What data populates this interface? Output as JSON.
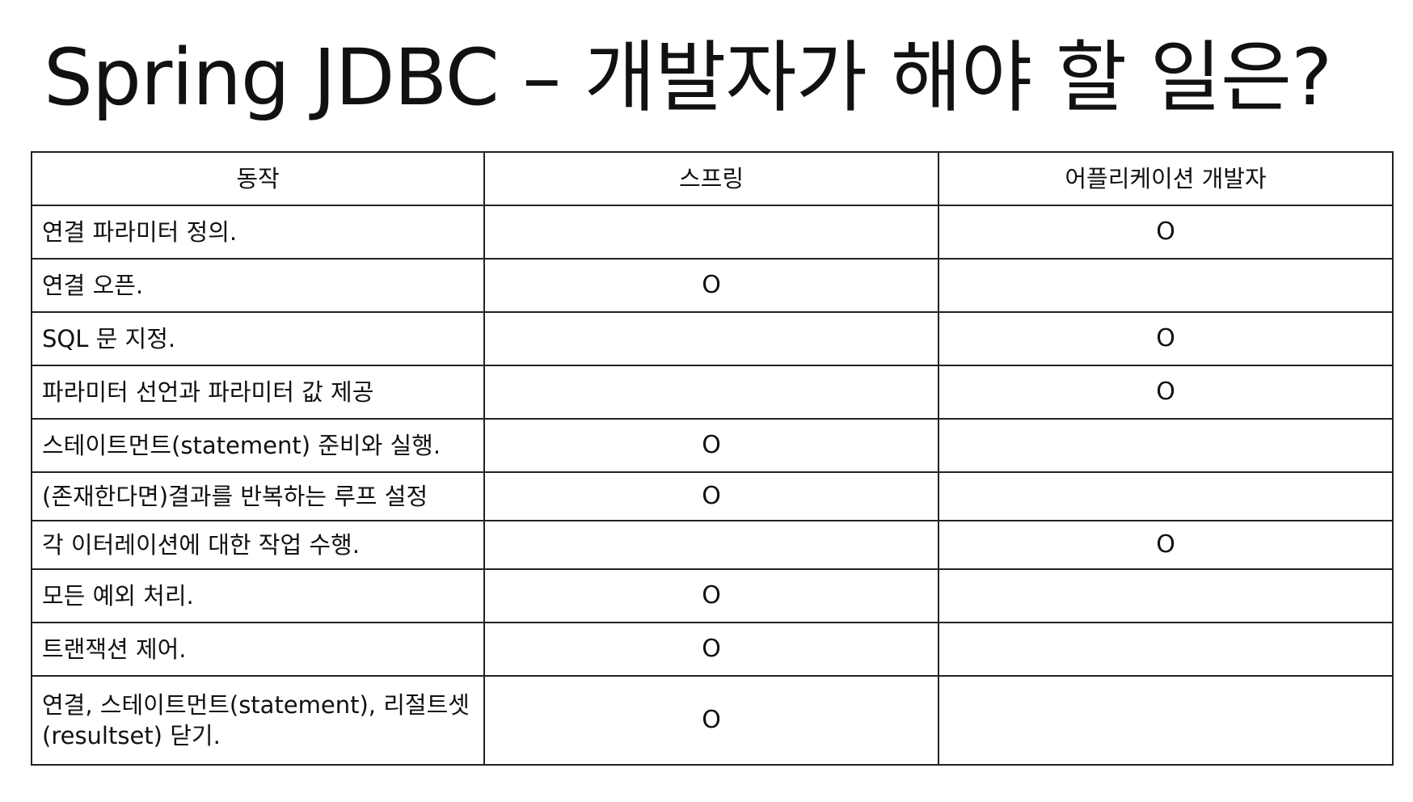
{
  "title": "Spring JDBC – 개발자가 해야 할 일은?",
  "table": {
    "headers": [
      "동작",
      "스프링",
      "어플리케이션 개발자"
    ],
    "rows": [
      {
        "action": "연결 파라미터 정의.",
        "spring": "",
        "developer": "O"
      },
      {
        "action": "연결 오픈.",
        "spring": "O",
        "developer": ""
      },
      {
        "action": "SQL 문 지정.",
        "spring": "",
        "developer": "O"
      },
      {
        "action": "파라미터 선언과 파라미터 값 제공",
        "spring": "",
        "developer": "O"
      },
      {
        "action": "스테이트먼트(statement) 준비와 실행.",
        "spring": "O",
        "developer": ""
      },
      {
        "action": "(존재한다면)결과를 반복하는 루프 설정",
        "spring": "O",
        "developer": ""
      },
      {
        "action": "각 이터레이션에 대한 작업 수행.",
        "spring": "",
        "developer": "O"
      },
      {
        "action": "모든 예외 처리.",
        "spring": "O",
        "developer": ""
      },
      {
        "action": "트랜잭션 제어.",
        "spring": "O",
        "developer": ""
      },
      {
        "action": "연결, 스테이트먼트(statement), 리절트셋(resultset) 닫기.",
        "spring": "O",
        "developer": ""
      }
    ]
  }
}
